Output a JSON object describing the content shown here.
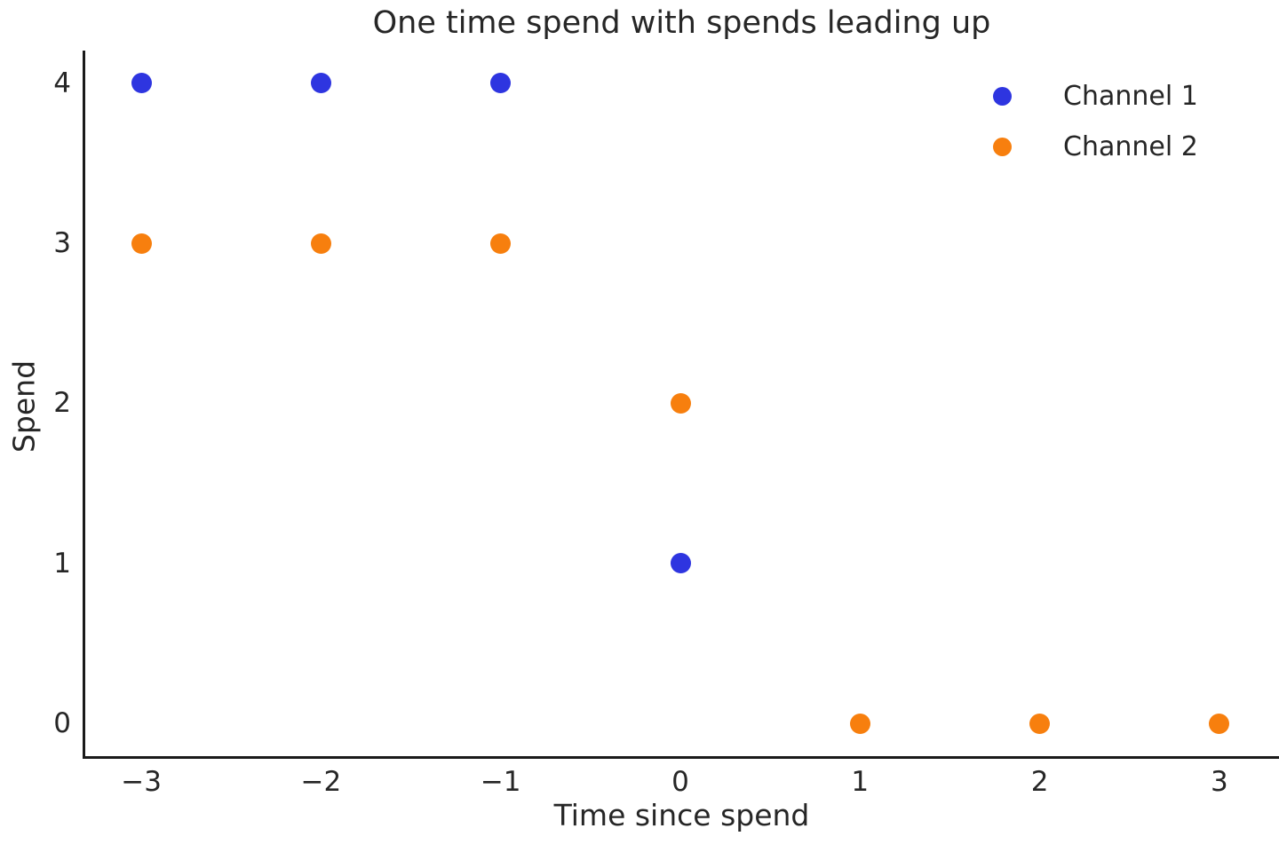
{
  "figure": {
    "background": "#ffffff",
    "text_color": "#262626",
    "spine_color": "#1a1a1a"
  },
  "chart_data": {
    "type": "scatter",
    "title": "One time spend with spends leading up",
    "xlabel": "Time since spend",
    "ylabel": "Spend",
    "xlim": [
      -3.32,
      3.33
    ],
    "ylim": [
      -0.21,
      4.2
    ],
    "x_ticks": [
      -3,
      -2,
      -1,
      0,
      1,
      2,
      3
    ],
    "x_tick_labels": [
      "−3",
      "−2",
      "−1",
      "0",
      "1",
      "2",
      "3"
    ],
    "y_ticks": [
      0,
      1,
      2,
      3,
      4
    ],
    "y_tick_labels": [
      "0",
      "1",
      "2",
      "3",
      "4"
    ],
    "grid": false,
    "legend_position": "upper right",
    "legend_frame": false,
    "marker_style": "circle",
    "series": [
      {
        "name": "Channel 1",
        "color": "#2e35e0",
        "points": [
          [
            -3,
            4
          ],
          [
            -2,
            4
          ],
          [
            -1,
            4
          ],
          [
            0,
            1
          ]
        ]
      },
      {
        "name": "Channel 2",
        "color": "#f77f0e",
        "points": [
          [
            -3,
            3
          ],
          [
            -2,
            3
          ],
          [
            -1,
            3
          ],
          [
            0,
            2
          ],
          [
            1,
            0
          ],
          [
            2,
            0
          ],
          [
            3,
            0
          ]
        ]
      }
    ]
  }
}
